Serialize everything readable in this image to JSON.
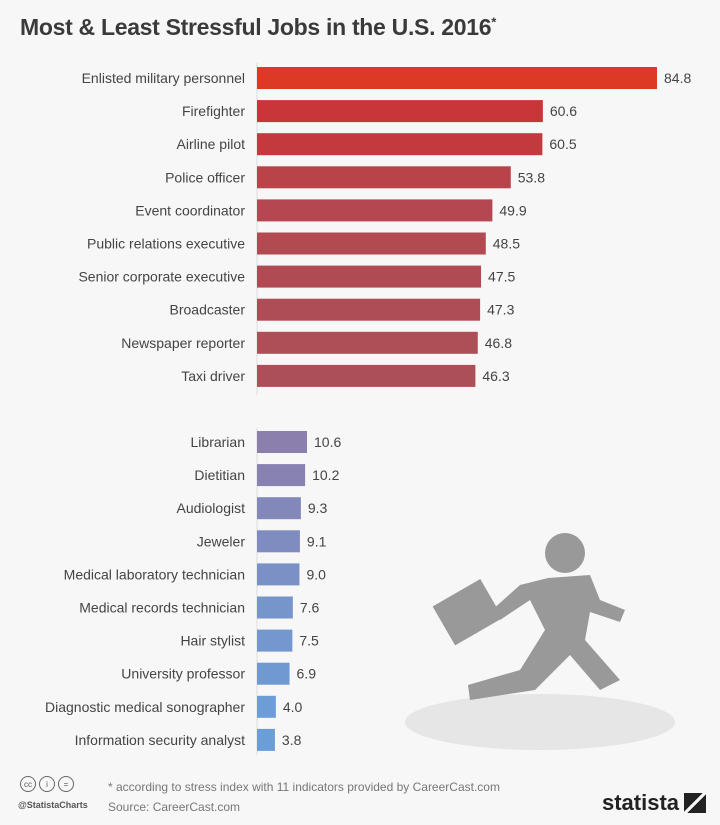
{
  "chart_data": {
    "type": "bar",
    "orientation": "horizontal",
    "title": "Most & Least Stressful Jobs in the U.S. 2016",
    "title_marker": "*",
    "xlim": [
      0,
      90
    ],
    "grid": false,
    "groups": [
      {
        "categories": [
          "Enlisted military personnel",
          "Firefighter",
          "Airline pilot",
          "Police officer",
          "Event coordinator",
          "Public relations executive",
          "Senior corporate executive",
          "Broadcaster",
          "Newspaper reporter",
          "Taxi driver"
        ],
        "values": [
          84.8,
          60.6,
          60.5,
          53.8,
          49.9,
          48.5,
          47.5,
          47.3,
          46.8,
          46.3
        ],
        "labels": [
          "84.8",
          "60.6",
          "60.5",
          "53.8",
          "49.9",
          "48.5",
          "47.5",
          "47.3",
          "46.8",
          "46.3"
        ],
        "colors": [
          "#dc3a25",
          "#c8363a",
          "#c2393e",
          "#b84349",
          "#b4474f",
          "#b24a52",
          "#b04b54",
          "#af4d56",
          "#ae4e57",
          "#ad4f58"
        ]
      },
      {
        "categories": [
          "Librarian",
          "Dietitian",
          "Audiologist",
          "Jeweler",
          "Medical laboratory technician",
          "Medical records technician",
          "Hair stylist",
          "University professor",
          "Diagnostic medical sonographer",
          "Information security analyst"
        ],
        "values": [
          10.6,
          10.2,
          9.3,
          9.1,
          9.0,
          7.6,
          7.5,
          6.9,
          4.0,
          3.8
        ],
        "labels": [
          "10.6",
          "10.2",
          "9.3",
          "9.1",
          "9.0",
          "7.6",
          "7.5",
          "6.9",
          "4.0",
          "3.8"
        ],
        "colors": [
          "#8b7fae",
          "#8882b2",
          "#8388ba",
          "#7f8cbf",
          "#7b90c4",
          "#7695cb",
          "#7397ce",
          "#7099d2",
          "#6d9cd6",
          "#6b9ed9"
        ]
      }
    ]
  },
  "footer": {
    "note": "* according to stress index with 11 indicators provided by CareerCast.com",
    "source": "Source: CareerCast.com",
    "handle": "@StatistaCharts",
    "cc_icons": [
      "cc",
      "i",
      "="
    ],
    "logo": "statista"
  }
}
